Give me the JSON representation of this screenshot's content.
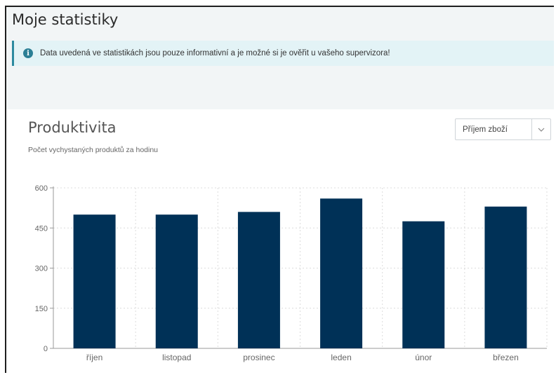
{
  "page": {
    "title": "Moje statistiky"
  },
  "alert": {
    "text": "Data uvedená ve statistikách jsou pouze informativní a je možné si je ověřit u vašeho supervizora!"
  },
  "card": {
    "title": "Produktivita",
    "subtitle": "Počet vychystaných produktů za hodinu",
    "select": {
      "value": "Příjem zboží"
    }
  },
  "colors": {
    "bar": "#003157",
    "alert_bg": "#e3f3f6",
    "alert_border": "#2c8aa0"
  },
  "chart_data": {
    "type": "bar",
    "categories": [
      "říjen",
      "listopad",
      "prosinec",
      "leden",
      "únor",
      "březen"
    ],
    "values": [
      500,
      500,
      510,
      560,
      475,
      530
    ],
    "ylim": [
      0,
      600
    ],
    "yticks": [
      0,
      150,
      300,
      450,
      600
    ],
    "grid": true,
    "legend": "none"
  }
}
